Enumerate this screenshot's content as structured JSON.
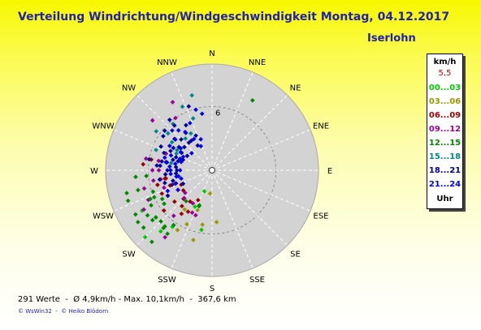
{
  "title": "Verteilung Windrichtung/Windgeschwindigkeit  Montag, 04.12.2017",
  "location": "Iserlohn",
  "legend": {
    "unit": "km/h",
    "max": "5,5",
    "bands": [
      {
        "label": "00...03",
        "color": "#00cc00"
      },
      {
        "label": "03...06",
        "color": "#999900"
      },
      {
        "label": "06...09",
        "color": "#990000"
      },
      {
        "label": "09...12",
        "color": "#990099"
      },
      {
        "label": "12...15",
        "color": "#008800"
      },
      {
        "label": "15...18",
        "color": "#008888"
      },
      {
        "label": "18...21",
        "color": "#000099"
      },
      {
        "label": "21...24",
        "color": "#0000ee"
      }
    ],
    "hours_label": "Uhr"
  },
  "footer": {
    "stats": "291 Werte  -  Ø 4,9km/h - Max. 10,1km/h  -  367,6 km",
    "credits": "© WsWin32  -  © Heiko Blödorn"
  },
  "chart_data": {
    "type": "scatter",
    "projection": "polar",
    "title": "Verteilung Windrichtung/Windgeschwindigkeit  Montag, 04.12.2017",
    "radial_unit": "km/h",
    "radial_max": 10,
    "radial_tick_labels": [
      "6"
    ],
    "directions": [
      "N",
      "NNE",
      "NE",
      "ENE",
      "E",
      "ESE",
      "SE",
      "SSE",
      "S",
      "SSW",
      "SW",
      "WSW",
      "W",
      "WNW",
      "NW",
      "NNW"
    ],
    "point_count": 291,
    "series": [
      {
        "name": "00...03",
        "color": "#00cc00",
        "points": [
          [
            200,
            2.1
          ],
          [
            205,
            3.8
          ],
          [
            215,
            6.5
          ],
          [
            220,
            7.5
          ],
          [
            225,
            8.9
          ],
          [
            230,
            6.9
          ],
          [
            240,
            7.6
          ],
          [
            190,
            5.7
          ]
        ]
      },
      {
        "name": "03...06",
        "color": "#999900",
        "points": [
          [
            190,
            5.2
          ],
          [
            205,
            5.6
          ],
          [
            195,
            6.8
          ],
          [
            210,
            6.5
          ],
          [
            175,
            4.9
          ],
          [
            185,
            2.2
          ],
          [
            200,
            4.0
          ],
          [
            215,
            4.5
          ]
        ]
      },
      {
        "name": "06...09",
        "color": "#990000",
        "points": [
          [
            205,
            3.1
          ],
          [
            210,
            4.5
          ],
          [
            220,
            4.4
          ],
          [
            230,
            4.6
          ],
          [
            240,
            3.7
          ],
          [
            250,
            3.7
          ],
          [
            255,
            5.3
          ],
          [
            235,
            3.3
          ],
          [
            225,
            3.8
          ],
          [
            215,
            3.6
          ],
          [
            245,
            5.2
          ],
          [
            260,
            4.5
          ],
          [
            245,
            3.2
          ],
          [
            215,
            5.0
          ],
          [
            250,
            4.2
          ],
          [
            260,
            4.4
          ],
          [
            230,
            5.9
          ],
          [
            275,
            6.5
          ],
          [
            280,
            5.8
          ]
        ]
      },
      {
        "name": "09...12",
        "color": "#990099",
        "points": [
          [
            310,
            7.3
          ],
          [
            325,
            6.0
          ],
          [
            330,
            7.4
          ],
          [
            270,
            5.6
          ],
          [
            280,
            5.1
          ],
          [
            260,
            4.9
          ],
          [
            280,
            6.3
          ],
          [
            290,
            4.6
          ],
          [
            240,
            4.8
          ],
          [
            230,
            3.3
          ],
          [
            225,
            3.7
          ],
          [
            260,
            5.6
          ],
          [
            250,
            4.8
          ],
          [
            215,
            7.7
          ],
          [
            210,
            3.6
          ],
          [
            220,
            5.6
          ],
          [
            245,
            6.6
          ],
          [
            200,
            4.5
          ],
          [
            240,
            7.4
          ],
          [
            255,
            6.6
          ],
          [
            205,
            4.4
          ],
          [
            270,
            5.0
          ]
        ]
      },
      {
        "name": "12...15",
        "color": "#008800",
        "points": [
          [
            235,
            5.5
          ],
          [
            245,
            6.4
          ],
          [
            255,
            8.3
          ],
          [
            230,
            7.3
          ],
          [
            265,
            6.2
          ],
          [
            250,
            5.9
          ],
          [
            220,
            8.8
          ],
          [
            200,
            3.6
          ],
          [
            215,
            6.3
          ],
          [
            240,
            6.6
          ],
          [
            230,
            6.9
          ],
          [
            245,
            6.0
          ],
          [
            255,
            7.2
          ],
          [
            265,
            7.2
          ],
          [
            220,
            7.1
          ],
          [
            200,
            3.5
          ],
          [
            215,
            7.3
          ],
          [
            235,
            8.5
          ],
          [
            250,
            8.4
          ],
          [
            30,
            7.6
          ],
          [
            235,
            7.4
          ],
          [
            230,
            8.4
          ],
          [
            240,
            8.3
          ],
          [
            220,
            3.8
          ],
          [
            220,
            6.9
          ],
          [
            240,
            5.4
          ],
          [
            225,
            6.8
          ]
        ]
      },
      {
        "name": "15...18",
        "color": "#008888",
        "points": [
          [
            330,
            4.0
          ],
          [
            345,
            7.3
          ],
          [
            335,
            6.6
          ],
          [
            340,
            5.2
          ],
          [
            320,
            3.9
          ],
          [
            300,
            3.8
          ],
          [
            280,
            3.9
          ],
          [
            290,
            5.6
          ],
          [
            305,
            4.6
          ],
          [
            310,
            5.4
          ],
          [
            295,
            3.7
          ],
          [
            320,
            5.7
          ],
          [
            305,
            6.4
          ]
        ]
      },
      {
        "name": "18...21",
        "color": "#000099",
        "points": [
          [
            330,
            2.7
          ],
          [
            335,
            3.6
          ],
          [
            325,
            4.3
          ],
          [
            330,
            4.9
          ],
          [
            320,
            5.5
          ],
          [
            340,
            6.4
          ],
          [
            310,
            4.6
          ],
          [
            300,
            4.2
          ],
          [
            290,
            3.6
          ],
          [
            295,
            4.3
          ],
          [
            300,
            2.7
          ],
          [
            305,
            3.8
          ],
          [
            290,
            4.8
          ],
          [
            275,
            5.2
          ],
          [
            260,
            5.0
          ],
          [
            270,
            4.2
          ],
          [
            280,
            4.8
          ],
          [
            285,
            3.8
          ],
          [
            265,
            3.4
          ],
          [
            255,
            3.8
          ],
          [
            245,
            3.0
          ],
          [
            240,
            4.8
          ],
          [
            280,
            6.0
          ],
          [
            310,
            5.8
          ],
          [
            320,
            6.2
          ],
          [
            325,
            3.4
          ],
          [
            290,
            2.9
          ],
          [
            275,
            3.4
          ],
          [
            265,
            4.4
          ],
          [
            250,
            4.0
          ],
          [
            310,
            3.4
          ],
          [
            300,
            3.3
          ],
          [
            295,
            5.3
          ],
          [
            280,
            4.3
          ],
          [
            270,
            3.3
          ],
          [
            305,
            5.6
          ],
          [
            275,
            4.9
          ],
          [
            315,
            4.1
          ],
          [
            285,
            3.3
          ],
          [
            320,
            3.4
          ],
          [
            255,
            4.6
          ]
        ]
      },
      {
        "name": "21...24",
        "color": "#0000ee",
        "points": [
          [
            340,
            3.1
          ],
          [
            350,
            5.4
          ],
          [
            345,
            5.9
          ],
          [
            335,
            4.9
          ],
          [
            330,
            3.4
          ],
          [
            320,
            4.9
          ],
          [
            315,
            5.3
          ],
          [
            310,
            2.5
          ],
          [
            305,
            3.6
          ],
          [
            300,
            4.6
          ],
          [
            295,
            3.0
          ],
          [
            290,
            4.1
          ],
          [
            285,
            3.0
          ],
          [
            280,
            4.4
          ],
          [
            275,
            4.0
          ],
          [
            270,
            3.0
          ],
          [
            265,
            3.9
          ],
          [
            260,
            3.4
          ],
          [
            255,
            3.0
          ],
          [
            250,
            3.6
          ],
          [
            245,
            4.6
          ],
          [
            240,
            3.7
          ],
          [
            325,
            4.4
          ],
          [
            335,
            2.5
          ],
          [
            270,
            3.9
          ],
          [
            285,
            4.6
          ],
          [
            300,
            3.4
          ],
          [
            310,
            4.5
          ],
          [
            260,
            3.2
          ],
          [
            290,
            3.2
          ],
          [
            280,
            3.5
          ]
        ]
      }
    ]
  }
}
